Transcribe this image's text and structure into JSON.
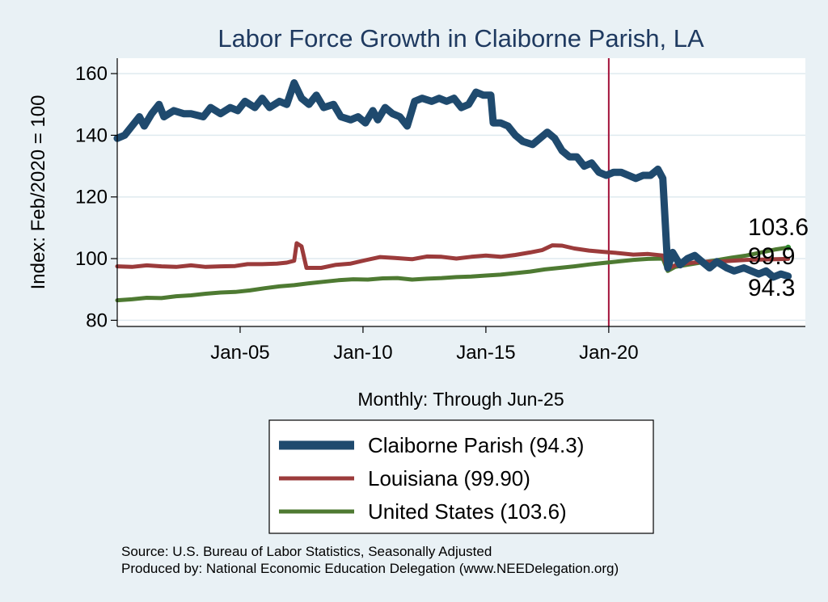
{
  "chart_data": {
    "type": "line",
    "title": "Labor Force Growth in Claiborne Parish, LA",
    "ylabel": "Index: Feb/2020 = 100",
    "xlabel": "Monthly: Through Jun-25",
    "ylim": [
      78,
      165
    ],
    "xlim": [
      2000.0,
      2028.0
    ],
    "y_ticks": [
      80,
      100,
      120,
      140,
      160
    ],
    "y_tick_labels": [
      "80",
      "100",
      "120",
      "140",
      "160"
    ],
    "x_ticks": [
      2005.0,
      2010.0,
      2015.0,
      2020.0
    ],
    "x_tick_labels": [
      "Jan-05",
      "Jan-10",
      "Jan-15",
      "Jan-20"
    ],
    "reference_line": {
      "x": 2020.0,
      "color": "#a3123a"
    },
    "end_labels": [
      "103.6",
      "99.9",
      "94.3"
    ],
    "series": [
      {
        "name": "Claiborne Parish",
        "legend_label": "Claiborne Parish  (94.3)",
        "color": "#1f4a6e",
        "last_value": 94.3,
        "points": [
          [
            2000.0,
            139
          ],
          [
            2000.3,
            140
          ],
          [
            2000.6,
            143
          ],
          [
            2000.9,
            146
          ],
          [
            2001.1,
            143
          ],
          [
            2001.4,
            147
          ],
          [
            2001.7,
            150
          ],
          [
            2001.9,
            146
          ],
          [
            2002.3,
            148
          ],
          [
            2002.7,
            147
          ],
          [
            2003.0,
            147
          ],
          [
            2003.5,
            146
          ],
          [
            2003.8,
            149
          ],
          [
            2004.2,
            147
          ],
          [
            2004.6,
            149
          ],
          [
            2004.9,
            148
          ],
          [
            2005.2,
            151
          ],
          [
            2005.6,
            149
          ],
          [
            2005.9,
            152
          ],
          [
            2006.2,
            149
          ],
          [
            2006.6,
            151
          ],
          [
            2006.9,
            150
          ],
          [
            2007.2,
            157
          ],
          [
            2007.5,
            152
          ],
          [
            2007.8,
            150
          ],
          [
            2008.1,
            153
          ],
          [
            2008.4,
            149
          ],
          [
            2008.8,
            150
          ],
          [
            2009.1,
            146
          ],
          [
            2009.5,
            145
          ],
          [
            2009.8,
            146
          ],
          [
            2010.1,
            144
          ],
          [
            2010.4,
            148
          ],
          [
            2010.6,
            145
          ],
          [
            2010.9,
            149
          ],
          [
            2011.2,
            147
          ],
          [
            2011.5,
            146
          ],
          [
            2011.8,
            143
          ],
          [
            2012.1,
            151
          ],
          [
            2012.4,
            152
          ],
          [
            2012.8,
            151
          ],
          [
            2013.1,
            152
          ],
          [
            2013.4,
            151
          ],
          [
            2013.7,
            152
          ],
          [
            2014.0,
            149
          ],
          [
            2014.3,
            150
          ],
          [
            2014.6,
            154
          ],
          [
            2014.9,
            153
          ],
          [
            2015.2,
            153
          ],
          [
            2015.3,
            144
          ],
          [
            2015.6,
            144
          ],
          [
            2015.9,
            143
          ],
          [
            2016.2,
            140
          ],
          [
            2016.5,
            138
          ],
          [
            2016.9,
            137
          ],
          [
            2017.2,
            139
          ],
          [
            2017.5,
            141
          ],
          [
            2017.8,
            139
          ],
          [
            2018.1,
            135
          ],
          [
            2018.4,
            133
          ],
          [
            2018.7,
            133
          ],
          [
            2019.0,
            130
          ],
          [
            2019.3,
            131
          ],
          [
            2019.6,
            128
          ],
          [
            2019.9,
            127
          ],
          [
            2020.2,
            128
          ],
          [
            2020.5,
            128
          ],
          [
            2020.8,
            127
          ],
          [
            2021.1,
            126
          ],
          [
            2021.4,
            127
          ],
          [
            2021.7,
            127
          ],
          [
            2022.0,
            129
          ],
          [
            2022.2,
            126
          ],
          [
            2022.4,
            97
          ],
          [
            2022.6,
            102
          ],
          [
            2022.9,
            98
          ],
          [
            2023.2,
            100
          ],
          [
            2023.5,
            101
          ],
          [
            2023.8,
            99
          ],
          [
            2024.1,
            97
          ],
          [
            2024.4,
            99
          ],
          [
            2024.8,
            97
          ],
          [
            2025.1,
            96
          ],
          [
            2025.5,
            97
          ],
          [
            2025.8,
            96
          ],
          [
            2026.1,
            95
          ],
          [
            2026.4,
            96
          ],
          [
            2026.7,
            94
          ],
          [
            2027.0,
            95
          ],
          [
            2027.3,
            94.3
          ]
        ]
      },
      {
        "name": "Louisiana",
        "legend_label": "Louisiana (99.90)",
        "color": "#9b3b3b",
        "last_value": 99.9,
        "points": [
          [
            2000.0,
            97.5
          ],
          [
            2000.6,
            97.3
          ],
          [
            2001.2,
            97.8
          ],
          [
            2001.8,
            97.5
          ],
          [
            2002.4,
            97.3
          ],
          [
            2003.0,
            97.8
          ],
          [
            2003.6,
            97.3
          ],
          [
            2004.2,
            97.5
          ],
          [
            2004.8,
            97.6
          ],
          [
            2005.3,
            98.2
          ],
          [
            2005.9,
            98.2
          ],
          [
            2006.5,
            98.4
          ],
          [
            2006.9,
            98.7
          ],
          [
            2007.2,
            99.3
          ],
          [
            2007.3,
            105.0
          ],
          [
            2007.5,
            104.0
          ],
          [
            2007.7,
            97.0
          ],
          [
            2008.3,
            97.0
          ],
          [
            2008.9,
            98.0
          ],
          [
            2009.5,
            98.4
          ],
          [
            2010.1,
            99.5
          ],
          [
            2010.7,
            100.5
          ],
          [
            2011.3,
            100.2
          ],
          [
            2012.0,
            99.8
          ],
          [
            2012.6,
            100.7
          ],
          [
            2013.2,
            100.6
          ],
          [
            2013.8,
            100.0
          ],
          [
            2014.4,
            100.6
          ],
          [
            2015.0,
            101.0
          ],
          [
            2015.6,
            100.6
          ],
          [
            2016.2,
            101.2
          ],
          [
            2016.8,
            102.0
          ],
          [
            2017.3,
            102.8
          ],
          [
            2017.7,
            104.3
          ],
          [
            2018.1,
            104.2
          ],
          [
            2018.6,
            103.3
          ],
          [
            2019.2,
            102.6
          ],
          [
            2019.8,
            102.2
          ],
          [
            2020.4,
            101.8
          ],
          [
            2021.0,
            101.3
          ],
          [
            2021.6,
            101.5
          ],
          [
            2022.2,
            101.0
          ],
          [
            2022.4,
            96.8
          ],
          [
            2022.7,
            97.8
          ],
          [
            2023.2,
            98.5
          ],
          [
            2023.8,
            99.0
          ],
          [
            2024.4,
            99.0
          ],
          [
            2025.0,
            99.3
          ],
          [
            2025.6,
            99.6
          ],
          [
            2026.2,
            99.7
          ],
          [
            2026.8,
            99.8
          ],
          [
            2027.3,
            99.9
          ]
        ]
      },
      {
        "name": "United States",
        "legend_label": "United States (103.6)",
        "color": "#4e7a32",
        "last_value": 103.6,
        "points": [
          [
            2000.0,
            86.5
          ],
          [
            2000.6,
            86.8
          ],
          [
            2001.2,
            87.3
          ],
          [
            2001.8,
            87.2
          ],
          [
            2002.4,
            87.8
          ],
          [
            2003.0,
            88.1
          ],
          [
            2003.6,
            88.6
          ],
          [
            2004.2,
            89.0
          ],
          [
            2004.8,
            89.2
          ],
          [
            2005.4,
            89.7
          ],
          [
            2006.0,
            90.4
          ],
          [
            2006.6,
            91.0
          ],
          [
            2007.2,
            91.4
          ],
          [
            2007.8,
            92.0
          ],
          [
            2008.4,
            92.5
          ],
          [
            2009.0,
            93.0
          ],
          [
            2009.6,
            93.3
          ],
          [
            2010.2,
            93.2
          ],
          [
            2010.8,
            93.6
          ],
          [
            2011.4,
            93.7
          ],
          [
            2012.0,
            93.2
          ],
          [
            2012.6,
            93.5
          ],
          [
            2013.2,
            93.7
          ],
          [
            2013.8,
            94.0
          ],
          [
            2014.4,
            94.2
          ],
          [
            2015.0,
            94.5
          ],
          [
            2015.6,
            94.8
          ],
          [
            2016.2,
            95.3
          ],
          [
            2016.8,
            95.8
          ],
          [
            2017.4,
            96.5
          ],
          [
            2018.0,
            97.0
          ],
          [
            2018.6,
            97.5
          ],
          [
            2019.2,
            98.1
          ],
          [
            2019.8,
            98.6
          ],
          [
            2020.4,
            99.1
          ],
          [
            2021.0,
            99.6
          ],
          [
            2021.6,
            99.9
          ],
          [
            2022.2,
            100.0
          ],
          [
            2022.4,
            96.0
          ],
          [
            2022.7,
            97.3
          ],
          [
            2023.2,
            98.0
          ],
          [
            2023.8,
            98.8
          ],
          [
            2024.4,
            99.5
          ],
          [
            2025.0,
            100.3
          ],
          [
            2025.6,
            101.0
          ],
          [
            2026.2,
            102.0
          ],
          [
            2026.8,
            103.0
          ],
          [
            2027.3,
            103.6
          ]
        ]
      }
    ]
  },
  "footer": {
    "source": "Source: U.S. Bureau of Labor Statistics, Seasonally Adjusted",
    "produced_by": "Produced by: National Economic Education Delegation (www.NEEDelegation.org)"
  },
  "colors": {
    "background": "#e9f1f5",
    "plot_background": "#ffffff",
    "gridline": "#dfeaef",
    "axis": "#000000"
  }
}
